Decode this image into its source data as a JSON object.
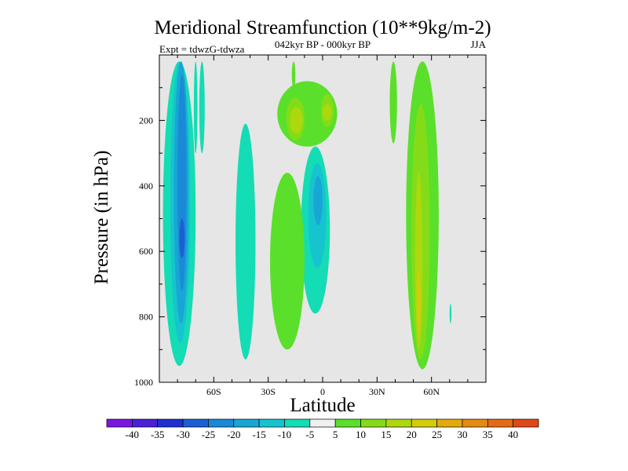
{
  "chart_data": {
    "type": "heatmap",
    "title": "Meridional Streamfunction (10**9kg/m-2)",
    "subtitle": "042kyr BP - 000kyr BP",
    "left_label": "Expt = tdwzG-tdwza",
    "right_label": "JJA",
    "xlabel": "Latitude",
    "ylabel": "Pressure (in hPa)",
    "x_range": [
      -90,
      90
    ],
    "y_range": [
      0,
      1000
    ],
    "y_reversed": true,
    "x_ticks": [
      {
        "value": -60,
        "label": "60S"
      },
      {
        "value": -30,
        "label": "30S"
      },
      {
        "value": 0,
        "label": "0"
      },
      {
        "value": 30,
        "label": "30N"
      },
      {
        "value": 60,
        "label": "60N"
      }
    ],
    "y_ticks": [
      {
        "value": 200,
        "label": "200"
      },
      {
        "value": 400,
        "label": "400"
      },
      {
        "value": 600,
        "label": "600"
      },
      {
        "value": 800,
        "label": "800"
      },
      {
        "value": 1000,
        "label": "1000"
      }
    ],
    "background_color": "#e6e6e6",
    "colorbar": {
      "levels": [
        "-40",
        "-35",
        "-30",
        "-25",
        "-20",
        "-15",
        "-10",
        "-5",
        "5",
        "10",
        "15",
        "20",
        "25",
        "30",
        "35",
        "40"
      ],
      "colors": [
        "#7a16e0",
        "#4a20d8",
        "#2030d0",
        "#1a60d4",
        "#1a8ad8",
        "#18a6d4",
        "#16c4d0",
        "#14dcb4",
        "#f0f0f0",
        "#5ae02a",
        "#84dc18",
        "#aed80e",
        "#d4cc0a",
        "#e4aa0c",
        "#e48a10",
        "#e46a14",
        "#e04818"
      ]
    },
    "regions": [
      {
        "lat": [
          -88,
          -70
        ],
        "p": [
          20,
          950
        ],
        "value": -10
      },
      {
        "lat": [
          -84,
          -73
        ],
        "p": [
          20,
          880
        ],
        "value": -15
      },
      {
        "lat": [
          -82,
          -74
        ],
        "p": [
          20,
          820
        ],
        "value": -20
      },
      {
        "lat": [
          -80,
          -75
        ],
        "p": [
          60,
          720
        ],
        "value": -25
      },
      {
        "lat": [
          -79,
          -76
        ],
        "p": [
          500,
          620
        ],
        "value": -30
      },
      {
        "lat": [
          -71,
          -69
        ],
        "p": [
          20,
          300
        ],
        "value": -10
      },
      {
        "lat": [
          -68,
          -65
        ],
        "p": [
          20,
          300
        ],
        "value": -10
      },
      {
        "lat": [
          -48,
          -37
        ],
        "p": [
          210,
          930
        ],
        "value": -10
      },
      {
        "lat": [
          -12,
          4
        ],
        "p": [
          280,
          790
        ],
        "value": -10
      },
      {
        "lat": [
          -8,
          2
        ],
        "p": [
          330,
          650
        ],
        "value": -15
      },
      {
        "lat": [
          -5,
          0
        ],
        "p": [
          370,
          520
        ],
        "value": -20
      },
      {
        "lat": [
          -29,
          -10
        ],
        "p": [
          360,
          900
        ],
        "value": 5
      },
      {
        "lat": [
          -17,
          -15
        ],
        "p": [
          20,
          100
        ],
        "value": 5
      },
      {
        "lat": [
          -25,
          8
        ],
        "p": [
          80,
          280
        ],
        "value": 5
      },
      {
        "lat": [
          -20,
          -10
        ],
        "p": [
          130,
          260
        ],
        "value": 10
      },
      {
        "lat": [
          -18,
          -11
        ],
        "p": [
          160,
          240
        ],
        "value": 15
      },
      {
        "lat": [
          -1,
          6
        ],
        "p": [
          120,
          220
        ],
        "value": 10
      },
      {
        "lat": [
          0,
          5
        ],
        "p": [
          150,
          200
        ],
        "value": 15
      },
      {
        "lat": [
          37,
          41
        ],
        "p": [
          20,
          270
        ],
        "value": 5
      },
      {
        "lat": [
          46,
          64
        ],
        "p": [
          20,
          960
        ],
        "value": 5
      },
      {
        "lat": [
          49,
          59
        ],
        "p": [
          150,
          930
        ],
        "value": 10
      },
      {
        "lat": [
          51,
          55
        ],
        "p": [
          360,
          900
        ],
        "value": 15
      },
      {
        "lat": [
          52,
          54
        ],
        "p": [
          660,
          860
        ],
        "value": 20
      },
      {
        "lat": [
          70,
          71
        ],
        "p": [
          760,
          820
        ],
        "value": -10
      }
    ]
  }
}
